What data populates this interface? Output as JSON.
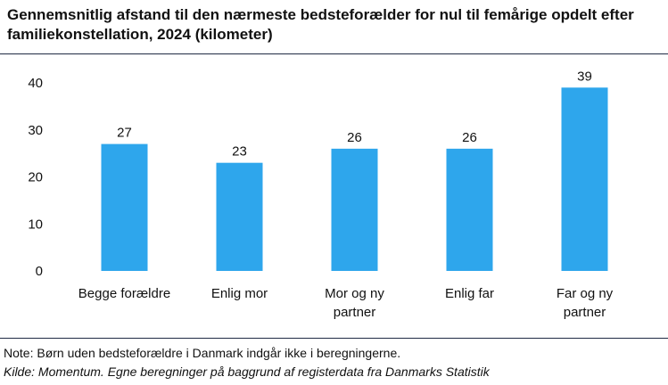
{
  "header": {
    "title": "Gennemsnitlig afstand til den nærmeste bedsteforælder for nul til femårige opdelt efter familiekonstellation, 2024 (kilometer)"
  },
  "footer": {
    "note": "Note: Børn uden bedsteforældre i Danmark indgår ikke i beregningerne.",
    "source": "Kilde: Momentum. Egne beregninger på baggrund af registerdata fra Danmarks Statistik"
  },
  "chart_data": {
    "type": "bar",
    "categories": [
      [
        "Begge forældre"
      ],
      [
        "Enlig mor"
      ],
      [
        "Mor og ny",
        "partner"
      ],
      [
        "Enlig far"
      ],
      [
        "Far og ny",
        "partner"
      ]
    ],
    "values": [
      27,
      23,
      26,
      26,
      39
    ],
    "data_labels": [
      "27",
      "23",
      "26",
      "26",
      "39"
    ],
    "yticks": [
      0,
      10,
      20,
      30,
      40
    ],
    "ylim": [
      0,
      40
    ],
    "grid": false,
    "bar_color": "#2ea6ec",
    "title": "Gennemsnitlig afstand til den nærmeste bedsteforælder for nul til femårige opdelt efter familiekonstellation, 2024 (kilometer)"
  }
}
